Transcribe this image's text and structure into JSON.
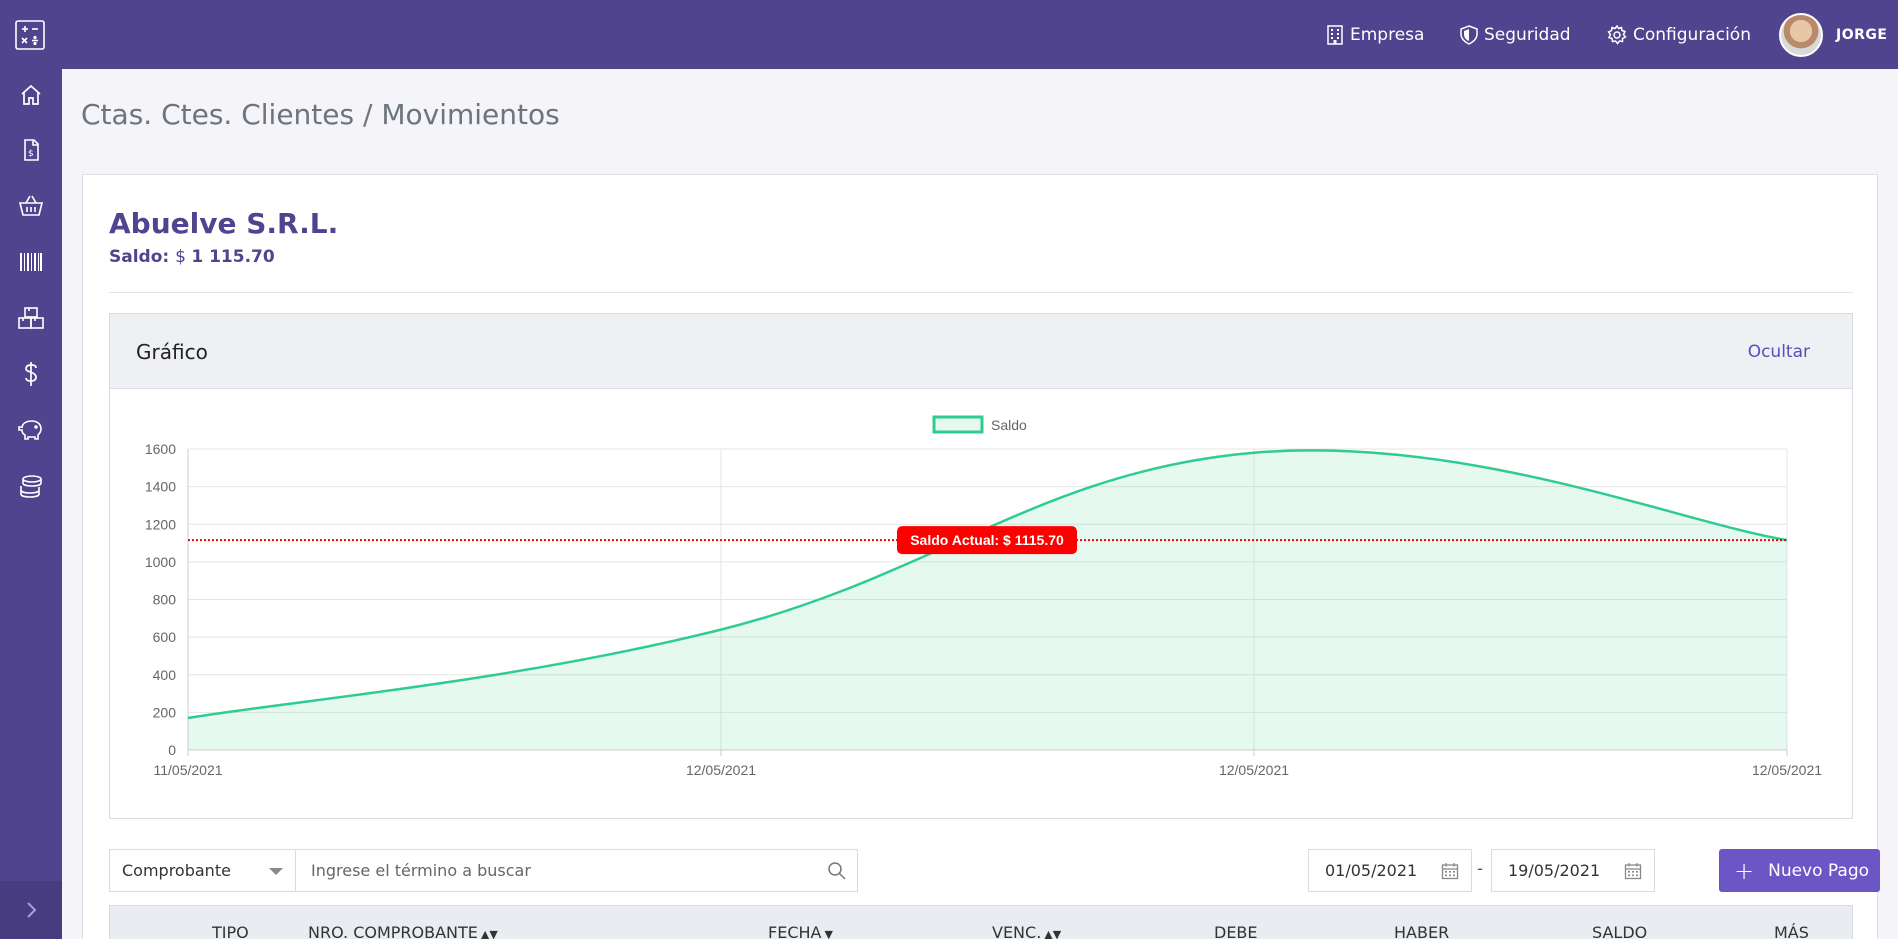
{
  "topbar": {
    "nav": [
      {
        "label": "Empresa",
        "icon": "building-icon"
      },
      {
        "label": "Seguridad",
        "icon": "shield-icon"
      },
      {
        "label": "Configuración",
        "icon": "gear-icon"
      }
    ],
    "user": "JORGE"
  },
  "sidebar": {
    "items": [
      "home-icon",
      "invoice-icon",
      "basket-icon",
      "barcode-icon",
      "boxes-icon",
      "dollar-icon",
      "piggy-bank-icon",
      "coins-icon"
    ],
    "collapse_icon": "chevron-right-icon"
  },
  "page": {
    "title": "Ctas. Ctes. Clientes / Movimientos"
  },
  "client": {
    "name": "Abuelve S.R.L.",
    "saldo_label": "Saldo",
    "saldo_currency": "$",
    "saldo_value": "1 115.70"
  },
  "chart_panel": {
    "title": "Gráfico",
    "hide_label": "Ocultar"
  },
  "chart_data": {
    "type": "area",
    "legend": [
      "Saldo"
    ],
    "legend_position": "top-center",
    "x": [
      "11/05/2021",
      "12/05/2021",
      "12/05/2021",
      "12/05/2021"
    ],
    "series": [
      {
        "name": "Saldo",
        "values": [
          170,
          640,
          1580,
          1115.7
        ],
        "color": "#2ecc8f"
      }
    ],
    "ylim": [
      0,
      1600
    ],
    "yticks": [
      0,
      200,
      400,
      600,
      800,
      1000,
      1200,
      1400,
      1600
    ],
    "grid": true,
    "reference_line": {
      "value": 1115.7,
      "label": "Saldo Actual: $ 1115.70",
      "color": "#ff0000"
    }
  },
  "filters": {
    "select_value": "Comprobante",
    "search_placeholder": "Ingrese el término a buscar",
    "date_from": "01/05/2021",
    "date_to": "19/05/2021",
    "date_separator": "-",
    "new_payment_label": "Nuevo Pago",
    "new_payment_plus": "+"
  },
  "table": {
    "headers": [
      "TIPO",
      "NRO. COMPROBANTE",
      "FECHA",
      "VENC.",
      "DEBE",
      "HABER",
      "SALDO",
      "MÁS"
    ]
  },
  "colors": {
    "brand": "#51448f",
    "accent": "#6c55c4",
    "series": "#2ecc8f",
    "reference": "#ff0000"
  }
}
